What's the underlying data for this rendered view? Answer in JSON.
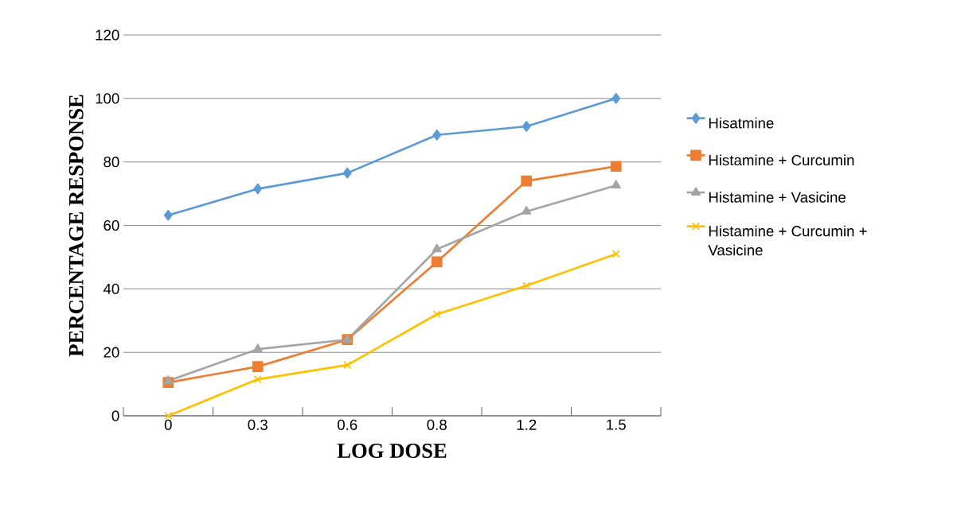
{
  "chart_data": {
    "type": "line",
    "xlabel": "LOG DOSE",
    "ylabel": "PERCENTAGE RESPONSE",
    "categories": [
      "0",
      "0.3",
      "0.6",
      "0.8",
      "1.2",
      "1.5"
    ],
    "series": [
      {
        "name": "Hisatmine",
        "color": "#5b9bd5",
        "marker": "diamond",
        "values": [
          63.2,
          71.5,
          76.5,
          88.5,
          91.2,
          100
        ]
      },
      {
        "name": "Histamine + Curcumin",
        "color": "#ed7d31",
        "marker": "square",
        "values": [
          10.5,
          15.5,
          24,
          48.5,
          74,
          78.6
        ]
      },
      {
        "name": "Histamine + Vasicine",
        "color": "#a5a5a5",
        "marker": "triangle",
        "values": [
          11,
          21,
          24,
          52.5,
          64.4,
          72.6
        ]
      },
      {
        "name": "Histamine + Curcumin + Vasicine",
        "color": "#ffc000",
        "marker": "cross",
        "values": [
          0,
          11.5,
          16,
          32,
          41,
          51
        ]
      }
    ],
    "ylim": [
      0,
      120
    ],
    "yticks": [
      0,
      20,
      40,
      60,
      80,
      100,
      120
    ],
    "grid": "y",
    "legend": "right",
    "line_style": "solid"
  }
}
